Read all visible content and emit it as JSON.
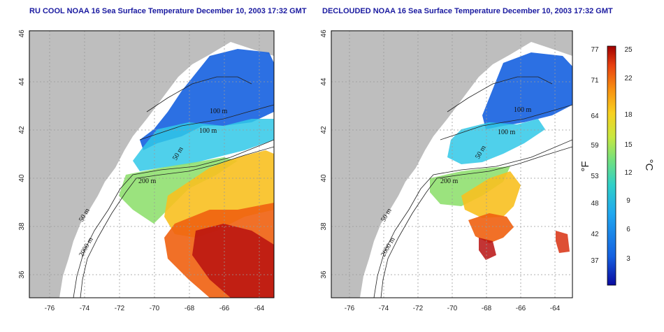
{
  "panels": [
    {
      "title": "RU COOL NOAA 16 Sea Surface Temperature December 10, 2003 17:32 GMT"
    },
    {
      "title": "DECLOUDED NOAA 16 Sea Surface Temperature December 10, 2003 17:32 GMT"
    }
  ],
  "axes": {
    "lon_ticks": [
      "-76",
      "-74",
      "-72",
      "-70",
      "-68",
      "-66",
      "-64"
    ],
    "lat_ticks": [
      "36",
      "38",
      "40",
      "42",
      "44",
      "46"
    ]
  },
  "contours": [
    "100 m",
    "100 m",
    "50 m",
    "200 m",
    "50 m",
    "2000 m"
  ],
  "colorbar": {
    "fahrenheit_ticks": [
      "77",
      "71",
      "64",
      "59",
      "53",
      "48",
      "42",
      "37"
    ],
    "celsius_ticks": [
      "25",
      "22",
      "18",
      "15",
      "12",
      "9",
      "6",
      "3"
    ],
    "fahrenheit_label": "°F",
    "celsius_label": "°C"
  },
  "colors": {
    "land": "#bebebe",
    "title": "#1a1aa0",
    "scale": [
      "#0a0aa0",
      "#1560e0",
      "#20a8f0",
      "#30d0c8",
      "#70e080",
      "#c8e840",
      "#f8d020",
      "#f89010",
      "#e84010",
      "#a00000"
    ]
  }
}
